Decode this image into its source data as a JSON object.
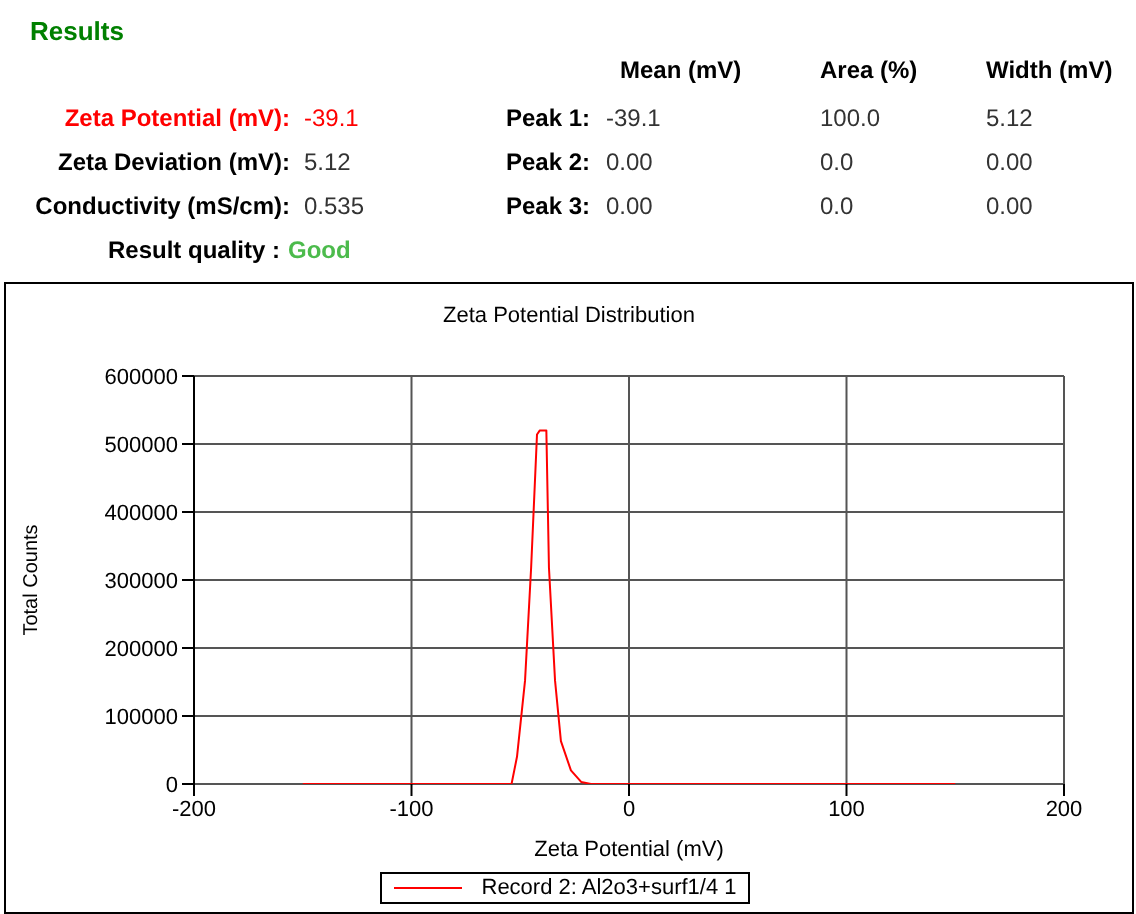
{
  "chart_data": {
    "type": "line",
    "title": "Zeta Potential Distribution",
    "xlabel": "Zeta Potential (mV)",
    "ylabel": "Total Counts",
    "annotations": [
      "Results",
      "Mean (mV)",
      "Area (%)",
      "Width (mV)",
      "Zeta Potential (mV):",
      "-39.1",
      "Peak 1:",
      "-39.1",
      "100.0",
      "5.12",
      "Zeta Deviation (mV):",
      "5.12",
      "Peak 2:",
      "0.00",
      "0.0",
      "0.00",
      "Conductivity (mS/cm):",
      "0.535",
      "Peak 3:",
      "0.00",
      "0.0",
      "0.00",
      "Result quality :",
      "Good"
    ],
    "xlim": [
      -200,
      200
    ],
    "xticks": [
      -200,
      -100,
      0,
      100,
      200
    ],
    "ylim": [
      0,
      600000
    ],
    "yticks": [
      0,
      100000,
      200000,
      300000,
      400000,
      500000,
      600000
    ],
    "grid": true,
    "legend": "bottom",
    "marker": "none",
    "line_style": "solid",
    "series": [
      {
        "name": "Record 2: Al2o3+surf1/4 1",
        "color": "#ff0000",
        "x": [
          -150,
          -100,
          -60,
          -54,
          -51.5,
          -47.8,
          -45,
          -42.3,
          -41,
          -38,
          -36.8,
          -34,
          -31.3,
          -26.7,
          -22,
          -17.5,
          0,
          50,
          100,
          150
        ],
        "values": [
          0,
          0,
          0,
          0,
          40000,
          152000,
          318000,
          514000,
          520000,
          520000,
          318000,
          152000,
          63000,
          20000,
          3000,
          0,
          0,
          0,
          0,
          0
        ]
      }
    ]
  }
}
